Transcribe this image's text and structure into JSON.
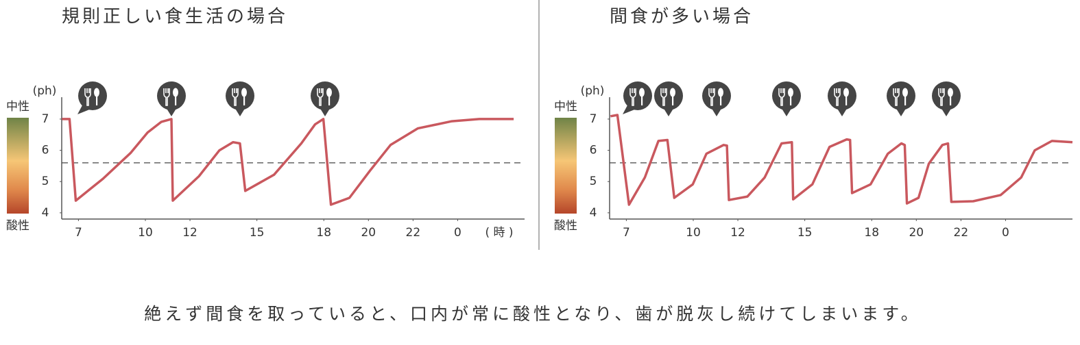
{
  "chart_data": [
    {
      "type": "line",
      "title": "規則正しい食生活の場合",
      "y_label": "(ph)",
      "scale_top": "中性",
      "scale_bottom": "酸性",
      "x_label": "( 時 )",
      "color": "#c9585e",
      "reference_line": 5.6,
      "xlim": [
        6.25,
        27
      ],
      "ylim": [
        3.8,
        7.7
      ],
      "xticks": [
        7,
        10,
        12,
        15,
        18,
        20,
        22,
        {
          "value": 24,
          "label": "0"
        }
      ],
      "yticks": [
        4,
        5,
        6,
        7
      ],
      "x": [
        6.26,
        6.6,
        6.88,
        8.1,
        9.33,
        10.1,
        10.71,
        11.17,
        11.23,
        12.4,
        13.32,
        13.93,
        14.24,
        14.48,
        15.77,
        16.99,
        17.61,
        17.98,
        18.32,
        19.15,
        20.07,
        20.99,
        22.21,
        23.74,
        24.97,
        26.51
      ],
      "values": [
        7,
        7,
        4.39,
        5.09,
        5.91,
        6.57,
        6.91,
        7,
        4.39,
        5.17,
        6.0,
        6.26,
        6.22,
        4.7,
        5.22,
        6.22,
        6.83,
        7,
        4.26,
        4.48,
        5.35,
        6.17,
        6.7,
        6.93,
        7,
        7
      ]
    },
    {
      "type": "line",
      "title": "間食が多い場合",
      "y_label": "(ph)",
      "scale_top": "中性",
      "scale_bottom": "酸性",
      "color": "#c9585e",
      "reference_line": 5.6,
      "xlim": [
        6.25,
        27
      ],
      "ylim": [
        3.8,
        7.7
      ],
      "xticks": [
        7,
        10,
        12,
        15,
        18,
        20,
        22,
        {
          "value": 24,
          "label": "0"
        }
      ],
      "yticks": [
        4,
        5,
        6,
        7
      ],
      "x": [
        6.29,
        6.6,
        7.12,
        7.83,
        8.44,
        8.84,
        9.15,
        9.98,
        10.59,
        11.36,
        11.51,
        11.6,
        12.43,
        13.2,
        13.96,
        14.42,
        14.48,
        15.34,
        16.11,
        16.88,
        17.03,
        17.12,
        17.95,
        18.72,
        19.33,
        19.48,
        19.58,
        20.1,
        20.56,
        21.17,
        21.42,
        21.57,
        22.55,
        23.78,
        24.7,
        25.31,
        26.08,
        27.0
      ],
      "values": [
        7.09,
        7.13,
        4.26,
        5.13,
        6.3,
        6.33,
        4.48,
        4.91,
        5.89,
        6.17,
        6.15,
        4.41,
        4.52,
        5.13,
        6.22,
        6.26,
        4.43,
        4.91,
        6.11,
        6.35,
        6.33,
        4.63,
        4.91,
        5.89,
        6.22,
        6.17,
        4.3,
        4.48,
        5.57,
        6.17,
        6.22,
        4.35,
        4.37,
        4.57,
        5.13,
        6.0,
        6.3,
        6.26
      ]
    }
  ],
  "caption": "絶えず間食を取っていると、口内が常に酸性となり、歯が脱灰し続けてしまいます。"
}
